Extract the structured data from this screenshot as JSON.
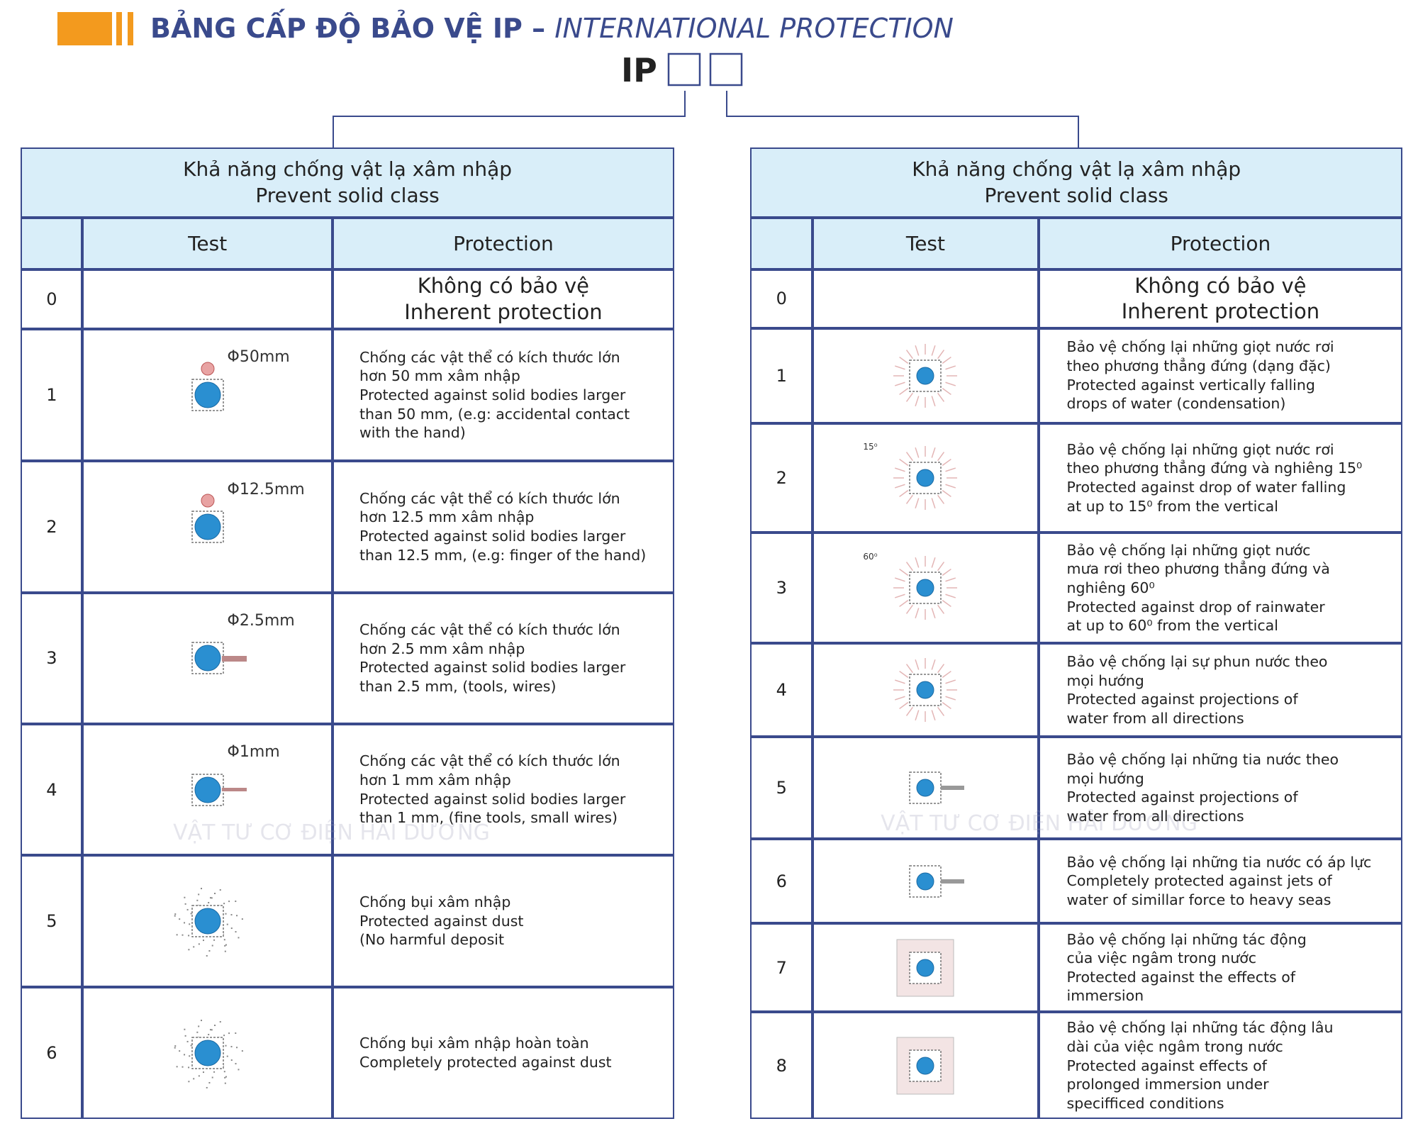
{
  "header": {
    "title": "BẢNG CẤP ĐỘ BẢO VỆ IP – ",
    "title_italic": "INTERNATIONAL PROTECTION",
    "code": "IP"
  },
  "tables": [
    {
      "heading": [
        "Khả năng chống vật lạ xâm nhập",
        "Prevent solid class"
      ],
      "columns": [
        "Test",
        "Protection"
      ],
      "watermark": "VẬT TƯ CƠ ĐIỆN HẢI DƯƠNG",
      "rows": [
        {
          "code": "0",
          "protection": [
            "Không có bảo vệ",
            "Inherent protection"
          ]
        },
        {
          "code": "1",
          "test": "Φ50mm",
          "protection": [
            "Chống các vật thể có kích thước lớn",
            "hơn 50 mm xâm nhập",
            "Protected against solid bodies larger",
            "than 50 mm, (e.g: accidental contact",
            "with the hand)"
          ]
        },
        {
          "code": "2",
          "test": "Φ12.5mm",
          "protection": [
            "Chống các vật thể có kích thước lớn",
            "hơn 12.5 mm xâm nhập",
            "Protected against solid bodies larger",
            "than 12.5 mm, (e.g: finger of the hand)"
          ]
        },
        {
          "code": "3",
          "test": "Φ2.5mm",
          "protection": [
            "Chống các vật thể có kích thước lớn",
            "hơn 2.5 mm xâm nhập",
            "Protected against solid bodies larger",
            "than 2.5 mm, (tools, wires)"
          ]
        },
        {
          "code": "4",
          "test": "Φ1mm",
          "protection": [
            "Chống các vật thể có kích thước lớn",
            "hơn 1 mm xâm nhập",
            "Protected against solid bodies larger",
            "than 1 mm, (fine tools, small wires)"
          ]
        },
        {
          "code": "5",
          "protection": [
            "Chống bụi xâm nhập",
            "Protected against dust",
            "(No harmful deposit"
          ]
        },
        {
          "code": "6",
          "protection": [
            "Chống bụi xâm nhập hoàn toàn",
            "Completely protected against dust"
          ]
        }
      ]
    },
    {
      "heading": [
        "Khả năng chống vật lạ xâm nhập",
        "Prevent solid class"
      ],
      "columns": [
        "Test",
        "Protection"
      ],
      "watermark": "VẬT TƯ CƠ ĐIỆN HẢI DƯƠNG",
      "rows": [
        {
          "code": "0",
          "protection": [
            "Không có bảo vệ",
            "Inherent protection"
          ]
        },
        {
          "code": "1",
          "protection": [
            "Bảo vệ chống lại những giọt nước rơi",
            "theo phương thẳng đứng (dạng đặc)",
            "Protected against vertically falling",
            "drops of water (condensation)"
          ]
        },
        {
          "code": "2",
          "test": "15⁰",
          "protection": [
            "Bảo vệ chống lại những giọt nước rơi",
            "theo phương thẳng đứng và nghiêng 15⁰",
            "Protected against drop of water falling",
            "at up to 15⁰ from the vertical"
          ]
        },
        {
          "code": "3",
          "test": "60⁰",
          "protection": [
            "Bảo vệ chống lại những giọt nước",
            "mưa rơi theo phương thẳng đứng và",
            "nghiêng 60⁰",
            "Protected against drop of rainwater",
            "at up to 60⁰ from the vertical"
          ]
        },
        {
          "code": "4",
          "protection": [
            "Bảo vệ chống lại sự phun nước theo",
            "mọi hướng",
            "Protected against projections of",
            "water from all directions"
          ]
        },
        {
          "code": "5",
          "protection": [
            "Bảo vệ chống lại những tia nước theo",
            "mọi hướng",
            "Protected against projections of",
            "water from all directions"
          ]
        },
        {
          "code": "6",
          "protection": [
            "Bảo vệ chống lại những tia nước có áp lực",
            "Completely protected against jets of",
            "water of simillar force to heavy seas"
          ]
        },
        {
          "code": "7",
          "protection": [
            "Bảo vệ chống lại những tác động",
            "của việc ngâm trong nước",
            "Protected against the effects of",
            "immersion"
          ]
        },
        {
          "code": "8",
          "protection": [
            "Bảo vệ chống lại những tác động lâu",
            "dài của việc ngâm trong nước",
            "Protected against effects of",
            "prolonged immersion under",
            "specifficed conditions"
          ]
        }
      ]
    }
  ]
}
